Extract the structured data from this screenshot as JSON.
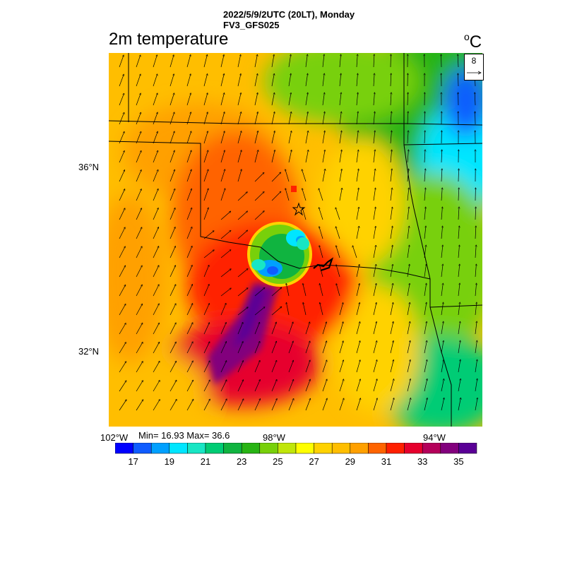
{
  "header": {
    "run_title": "2022/5/9/2UTC (20LT), Monday",
    "model": "FV3_GFS025",
    "variable_title": "2m temperature",
    "unit_base": "o",
    "unit_letter": "C"
  },
  "reference_vector": {
    "magnitude": "8"
  },
  "axes": {
    "lat_labels": [
      "36°N",
      "32°N"
    ],
    "lon_labels": [
      "102°W",
      "98°W",
      "94°W"
    ]
  },
  "stats": {
    "text": "Min= 16.93 Max= 36.6"
  },
  "colorbar": {
    "colors": [
      "#0000ff",
      "#0f5cff",
      "#00a0ff",
      "#00e6ff",
      "#18e6c4",
      "#00cc74",
      "#10b440",
      "#28b414",
      "#78d00a",
      "#c0e60a",
      "#ffff00",
      "#ffd200",
      "#ffbe00",
      "#ffa000",
      "#ff6400",
      "#ff2000",
      "#e6002d",
      "#b4005a",
      "#82007d",
      "#5a0096"
    ],
    "labels": [
      "17",
      "19",
      "21",
      "23",
      "25",
      "27",
      "29",
      "31",
      "33",
      "35"
    ]
  }
}
